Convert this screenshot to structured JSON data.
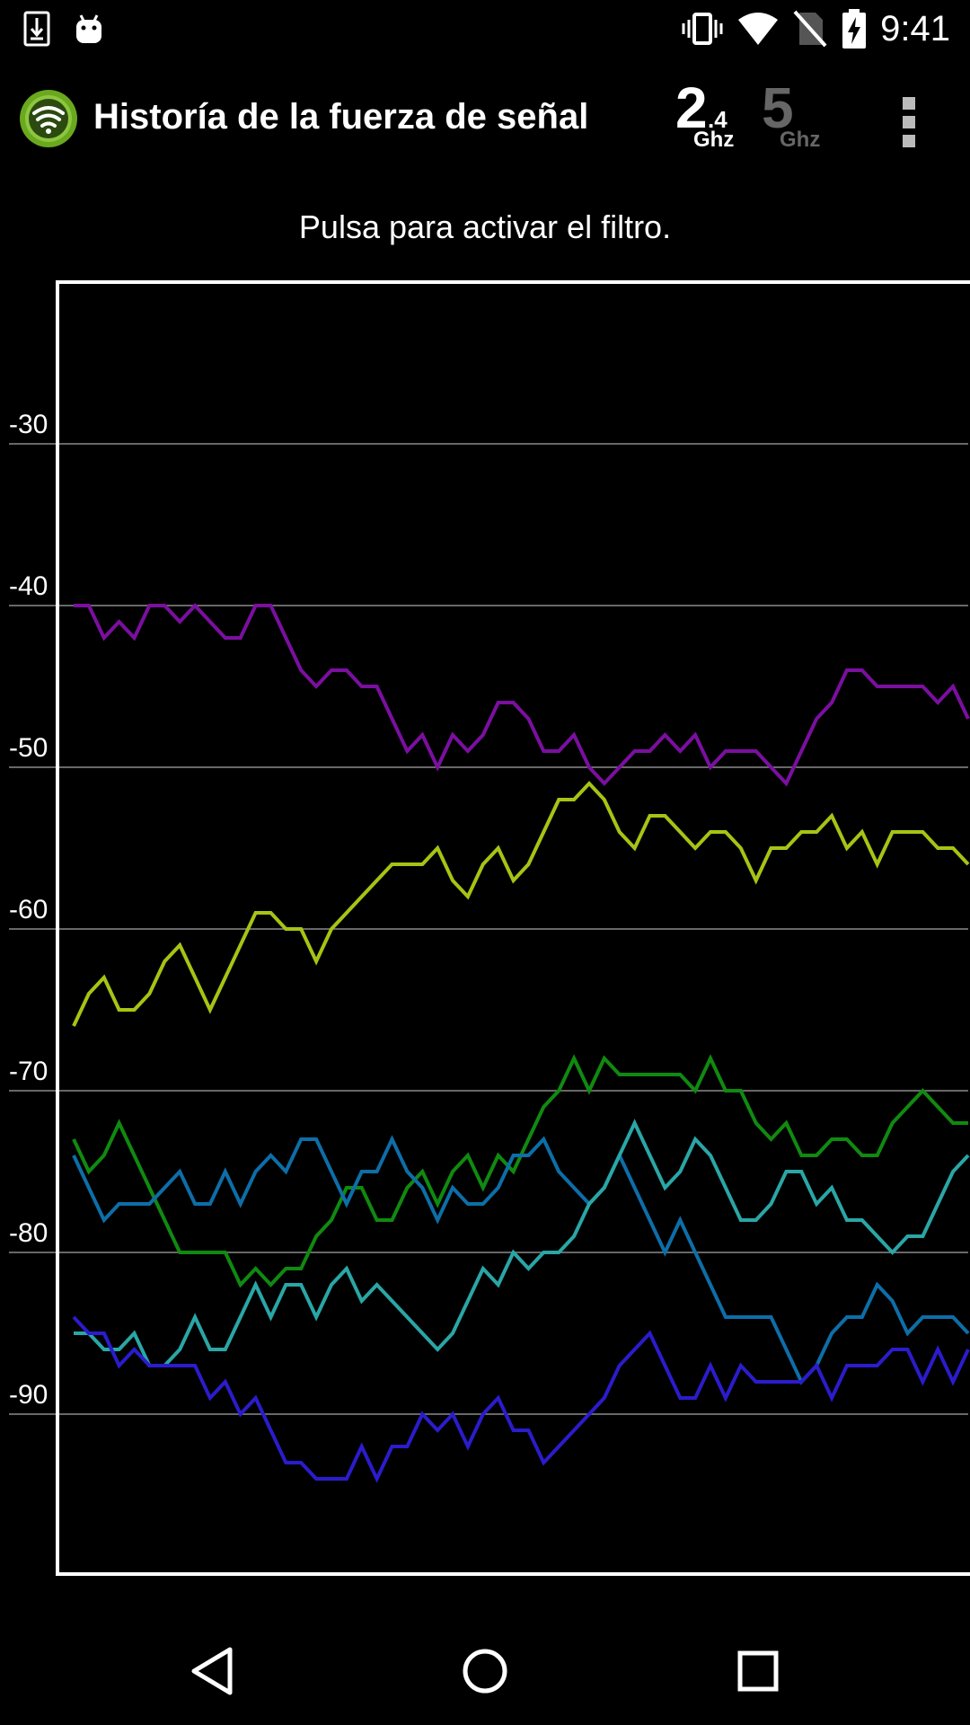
{
  "status_bar": {
    "time": "9:41",
    "icons": [
      "download-icon",
      "android-icon",
      "vibrate-icon",
      "wifi-icon",
      "no-sim-icon",
      "battery-charging-icon"
    ]
  },
  "app_bar": {
    "title": "Historía de la fuerza de señal",
    "app_icon": "wifi-signal-app-icon",
    "band_24": {
      "main": "2",
      "sub": ".4",
      "unit": "Ghz",
      "active": true
    },
    "band_5": {
      "main": "5",
      "unit": "Ghz",
      "active": false
    },
    "menu_icon": "more-vert-icon"
  },
  "hint_text": "Pulsa para activar el filtro.",
  "nav_bar": {
    "icons": [
      "back-icon",
      "home-icon",
      "recents-icon"
    ]
  },
  "chart_data": {
    "type": "line",
    "title": "",
    "xlabel": "",
    "ylabel": "",
    "ylim": [
      -100,
      -20
    ],
    "yticks": [
      -30,
      -40,
      -50,
      -60,
      -70,
      -80,
      -90
    ],
    "grid": true,
    "series": [
      {
        "color": "#7b0fa0",
        "values": [
          -40,
          -40,
          -42,
          -41,
          -42,
          -40,
          -40,
          -41,
          -40,
          -41,
          -42,
          -42,
          -40,
          -40,
          -42,
          -44,
          -45,
          -44,
          -44,
          -45,
          -45,
          -47,
          -49,
          -48,
          -50,
          -48,
          -49,
          -48,
          -46,
          -46,
          -47,
          -49,
          -49,
          -48,
          -50,
          -51,
          -50,
          -49,
          -49,
          -48,
          -49,
          -48,
          -50,
          -49,
          -49,
          -49,
          -50,
          -51,
          -49,
          -47,
          -46,
          -44,
          -44,
          -45,
          -45,
          -45,
          -45,
          -46,
          -45,
          -47
        ]
      },
      {
        "color": "#a6c414",
        "values": [
          -66,
          -64,
          -63,
          -65,
          -65,
          -64,
          -62,
          -61,
          -63,
          -65,
          -63,
          -61,
          -59,
          -59,
          -60,
          -60,
          -62,
          -60,
          -59,
          -58,
          -57,
          -56,
          -56,
          -56,
          -55,
          -57,
          -58,
          -56,
          -55,
          -57,
          -56,
          -54,
          -52,
          -52,
          -51,
          -52,
          -54,
          -55,
          -53,
          -53,
          -54,
          -55,
          -54,
          -54,
          -55,
          -57,
          -55,
          -55,
          -54,
          -54,
          -53,
          -55,
          -54,
          -56,
          -54,
          -54,
          -54,
          -55,
          -55,
          -56
        ]
      },
      {
        "color": "#108a10",
        "values": [
          -73,
          -75,
          -74,
          -72,
          -74,
          -76,
          -78,
          -80,
          -80,
          -80,
          -80,
          -82,
          -81,
          -82,
          -81,
          -81,
          -79,
          -78,
          -76,
          -76,
          -78,
          -78,
          -76,
          -75,
          -77,
          -75,
          -74,
          -76,
          -74,
          -75,
          -73,
          -71,
          -70,
          -68,
          -70,
          -68,
          -69,
          -69,
          -69,
          -69,
          -69,
          -70,
          -68,
          -70,
          -70,
          -72,
          -73,
          -72,
          -74,
          -74,
          -73,
          -73,
          -74,
          -74,
          -72,
          -71,
          -70,
          -71,
          -72,
          -72
        ]
      },
      {
        "color": "#0d6ea8",
        "values": [
          -74,
          -76,
          -78,
          -77,
          -77,
          -77,
          -76,
          -75,
          -77,
          -77,
          -75,
          -77,
          -75,
          -74,
          -75,
          -73,
          -73,
          -75,
          -77,
          -75,
          -75,
          -73,
          -75,
          -76,
          -78,
          -76,
          -77,
          -77,
          -76,
          -74,
          -74,
          -73,
          -75,
          -76,
          -77,
          -76,
          -74,
          -76,
          -78,
          -80,
          -78,
          -80,
          -82,
          -84,
          -84,
          -84,
          -84,
          -86,
          -88,
          -87,
          -85,
          -84,
          -84,
          -82,
          -83,
          -85,
          -84,
          -84,
          -84,
          -85
        ]
      },
      {
        "color": "#2aa6a6",
        "values": [
          -85,
          -85,
          -86,
          -86,
          -85,
          -87,
          -87,
          -86,
          -84,
          -86,
          -86,
          -84,
          -82,
          -84,
          -82,
          -82,
          -84,
          -82,
          -81,
          -83,
          -82,
          -83,
          -84,
          -85,
          -86,
          -85,
          -83,
          -81,
          -82,
          -80,
          -81,
          -80,
          -80,
          -79,
          -77,
          -76,
          -74,
          -72,
          -74,
          -76,
          -75,
          -73,
          -74,
          -76,
          -78,
          -78,
          -77,
          -75,
          -75,
          -77,
          -76,
          -78,
          -78,
          -79,
          -80,
          -79,
          -79,
          -77,
          -75,
          -74
        ]
      },
      {
        "color": "#2b1ccc",
        "values": [
          -84,
          -85,
          -85,
          -87,
          -86,
          -87,
          -87,
          -87,
          -87,
          -89,
          -88,
          -90,
          -89,
          -91,
          -93,
          -93,
          -94,
          -94,
          -94,
          -92,
          -94,
          -92,
          -92,
          -90,
          -91,
          -90,
          -92,
          -90,
          -89,
          -91,
          -91,
          -93,
          -92,
          -91,
          -90,
          -89,
          -87,
          -86,
          -85,
          -87,
          -89,
          -89,
          -87,
          -89,
          -87,
          -88,
          -88,
          -88,
          -88,
          -87,
          -89,
          -87,
          -87,
          -87,
          -86,
          -86,
          -88,
          -86,
          -88,
          -86
        ]
      }
    ]
  }
}
